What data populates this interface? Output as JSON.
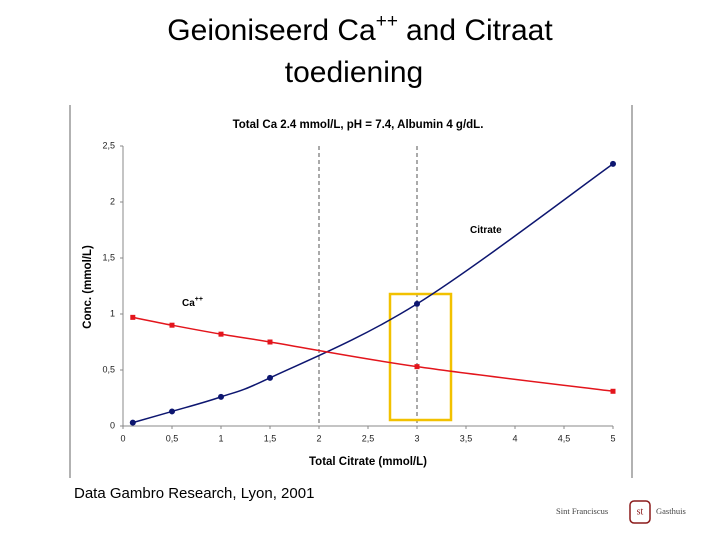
{
  "slide": {
    "title": [
      "Geioniseerd Ca",
      "++",
      "and Citraat",
      "toediening"
    ],
    "footer": "Data Gambro Research, Lyon, 2001",
    "logo": [
      "Sint Franciscus",
      "st",
      "Gasthuis"
    ]
  },
  "chart_data": {
    "type": "line",
    "title": "Total Ca 2.4 mmol/L, pH = 7.4, Albumin 4 g/dL.",
    "x_label": "Total Citrate (mmol/L)",
    "y_label": "Conc. (mmol/L)",
    "xlim": [
      0,
      5
    ],
    "xticks": [
      0,
      {
        "value": 0.5,
        "label": "0,5"
      },
      1,
      {
        "value": 1.5,
        "label": "1,5"
      },
      2,
      {
        "value": 2.5,
        "label": "2,5"
      },
      3,
      {
        "value": 3.5,
        "label": "3,5"
      },
      4,
      {
        "value": 4.5,
        "label": "4,5"
      },
      5
    ],
    "ylim": [
      0,
      2.5
    ],
    "yticks": [
      0,
      {
        "value": 0.5,
        "label": "0,5"
      },
      1,
      {
        "value": 1.5,
        "label": "1,5"
      },
      2,
      {
        "value": 2.5,
        "label": "2,5"
      }
    ],
    "vlines": [
      2,
      3
    ],
    "series": [
      {
        "name": "Citrate",
        "color": "#0d1670",
        "marker": "circle",
        "x": [
          0.1,
          0.5,
          1,
          1.5,
          3,
          5
        ],
        "values": [
          0.03,
          0.13,
          0.26,
          0.43,
          1.09,
          2.34
        ]
      },
      {
        "name": "Ca",
        "name_sup": "++",
        "color": "#e3151c",
        "marker": "square",
        "x": [
          0.1,
          0.5,
          1,
          1.5,
          3,
          5
        ],
        "values": [
          0.97,
          0.9,
          0.82,
          0.75,
          0.53,
          0.31
        ]
      }
    ]
  }
}
